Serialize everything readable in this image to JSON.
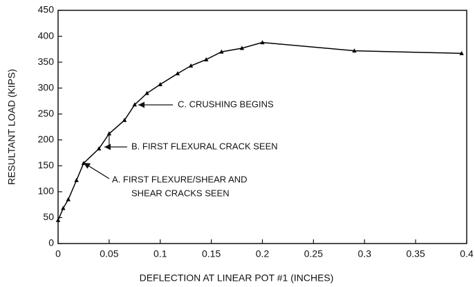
{
  "chart_data": {
    "type": "line",
    "xlabel": "DEFLECTION AT LINEAR POT #1 (INCHES)",
    "ylabel": "RESULTANT LOAD (KIPS)",
    "series": [
      {
        "name": "Resultant load",
        "color": "#000000",
        "x": [
          0,
          0.005,
          0.01,
          0.018,
          0.025,
          0.04,
          0.05,
          0.065,
          0.075,
          0.087,
          0.1,
          0.117,
          0.13,
          0.145,
          0.16,
          0.18,
          0.2,
          0.29,
          0.395
        ],
        "values": [
          45,
          68,
          85,
          122,
          155,
          183,
          212,
          238,
          268,
          290,
          307,
          328,
          343,
          355,
          370,
          377,
          388,
          372,
          367
        ]
      }
    ],
    "xlim": [
      0,
      0.4
    ],
    "xticks": [
      0,
      0.05,
      0.1,
      0.15,
      0.2,
      0.25,
      0.3,
      0.35,
      0.4
    ],
    "ylim": [
      0,
      450
    ],
    "yticks": [
      0,
      50,
      100,
      150,
      200,
      250,
      300,
      350,
      400,
      450
    ],
    "grid": false,
    "annotations": [
      "C. CRUSHING BEGINS",
      "B. FIRST FLEXURAL CRACK SEEN",
      "A. FIRST FLEXURE/SHEAR AND",
      "SHEAR CRACKS SEEN"
    ]
  }
}
